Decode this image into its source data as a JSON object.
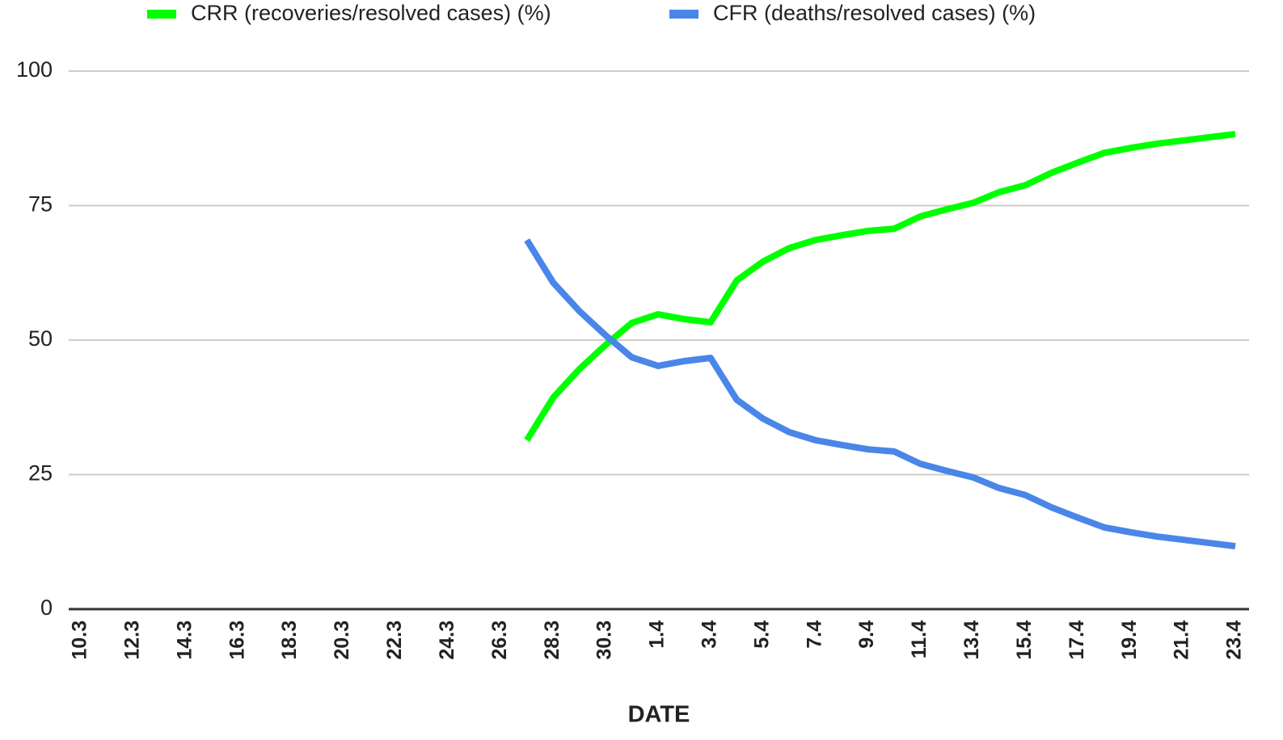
{
  "chart_data": {
    "type": "line",
    "x_label": "DATE",
    "categories": [
      "10.3",
      null,
      "12.3",
      null,
      "14.3",
      null,
      "16.3",
      null,
      "18.3",
      null,
      "20.3",
      null,
      "22.3",
      null,
      "24.3",
      null,
      "26.3",
      null,
      "28.3",
      null,
      "30.3",
      null,
      "1.4",
      null,
      "3.4",
      null,
      "5.4",
      null,
      "7.4",
      null,
      "9.4",
      null,
      "11.4",
      null,
      "13.4",
      null,
      "15.4",
      null,
      "17.4",
      null,
      "19.4",
      null,
      "21.4",
      null,
      "23.4"
    ],
    "series": [
      {
        "name": "CRR (recoveries/resolved cases) (%)",
        "color": "#00ff00",
        "values": [
          null,
          null,
          null,
          null,
          null,
          null,
          null,
          null,
          null,
          null,
          null,
          null,
          null,
          null,
          null,
          null,
          null,
          31.4,
          39.3,
          44.6,
          49.1,
          53.2,
          54.8,
          53.9,
          53.3,
          61.1,
          64.6,
          67.1,
          68.6,
          69.5,
          70.3,
          70.7,
          73.0,
          74.3,
          75.5,
          77.5,
          78.8,
          81.1,
          83.0,
          84.8,
          85.7,
          86.5,
          87.1,
          87.7,
          88.3
        ]
      },
      {
        "name": "CFR (deaths/resolved cases) (%)",
        "color": "#4a86e8",
        "values": [
          null,
          null,
          null,
          null,
          null,
          null,
          null,
          null,
          null,
          null,
          null,
          null,
          null,
          null,
          null,
          null,
          null,
          68.6,
          60.7,
          55.4,
          50.9,
          46.8,
          45.2,
          46.1,
          46.7,
          38.9,
          35.4,
          32.9,
          31.4,
          30.5,
          29.7,
          29.3,
          27.0,
          25.7,
          24.5,
          22.5,
          21.2,
          18.9,
          17.0,
          15.2,
          14.3,
          13.5,
          12.9,
          12.3,
          11.7
        ]
      }
    ],
    "ylim": [
      0,
      100
    ],
    "yticks": [
      0,
      25,
      50,
      75,
      100
    ],
    "grid": true,
    "legend": "top"
  }
}
